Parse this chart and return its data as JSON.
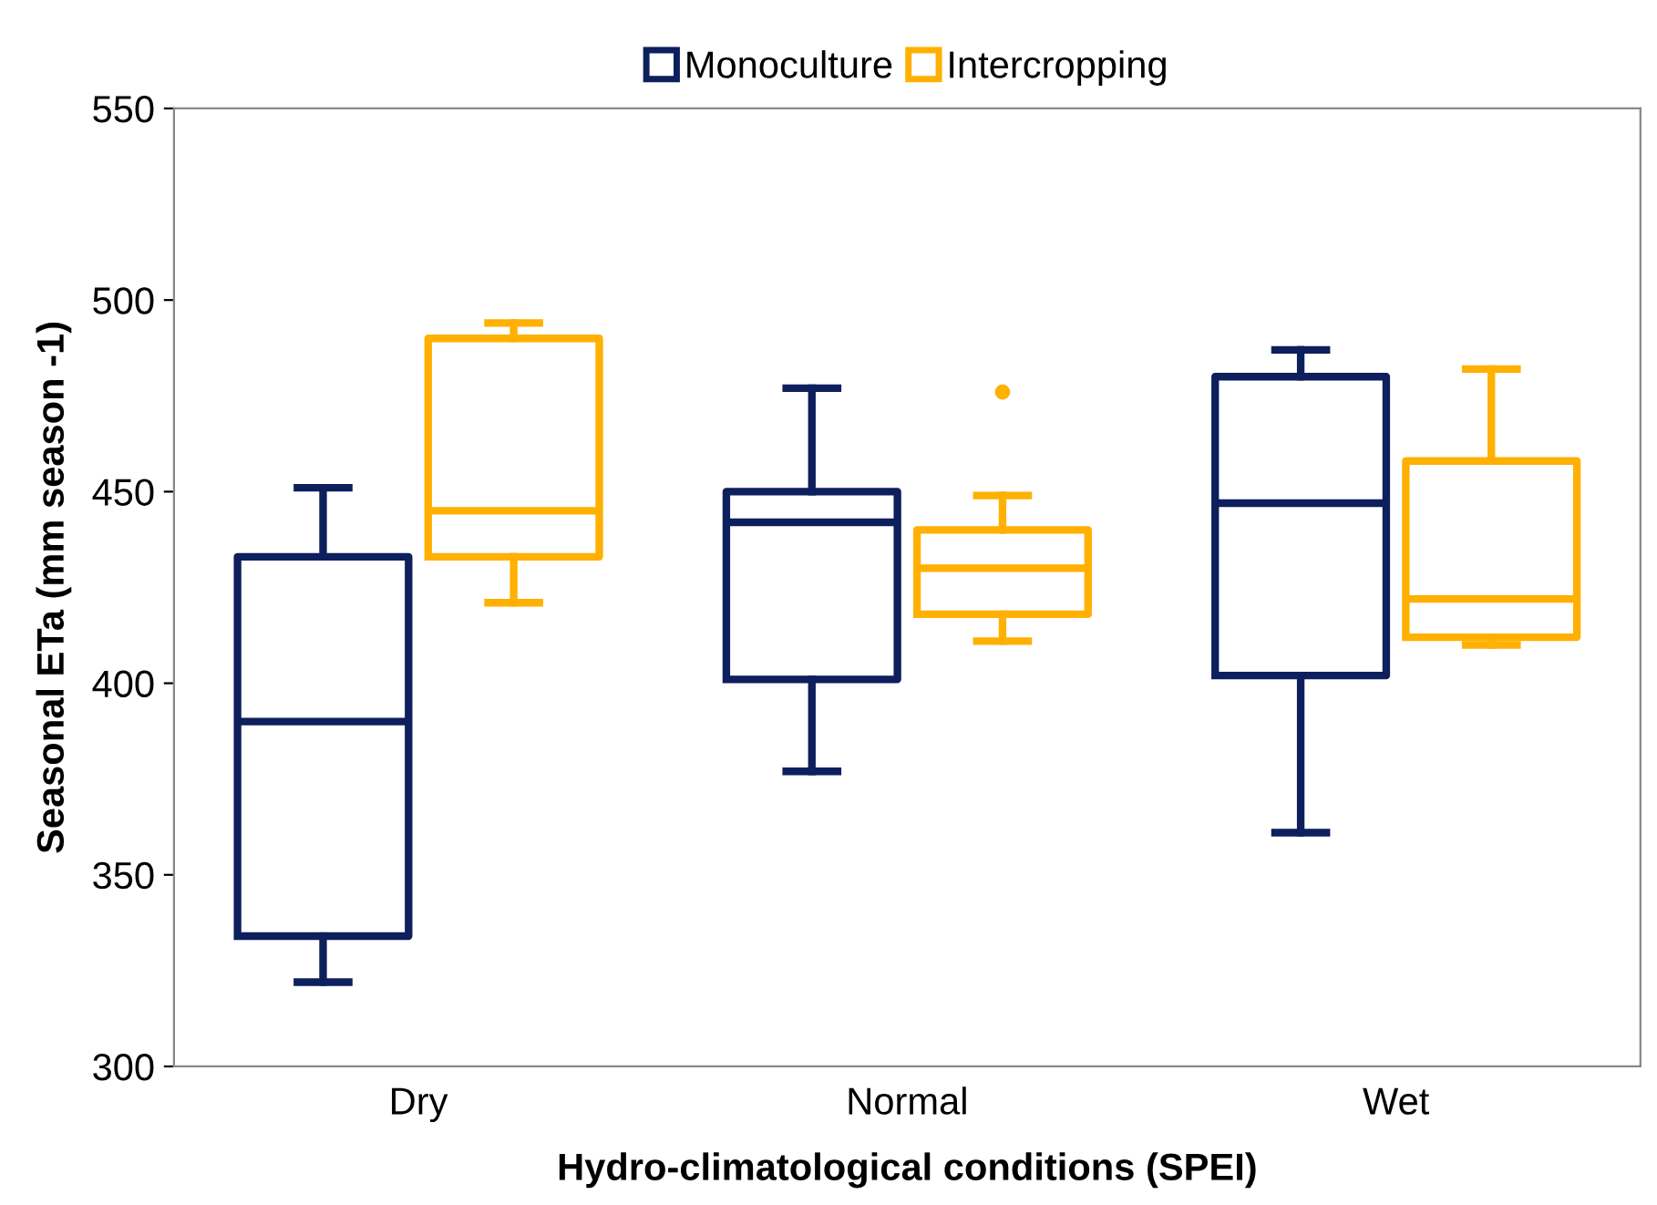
{
  "chart_data": {
    "type": "box",
    "xlabel": "Hydro-climatological conditions (SPEI)",
    "ylabel": "Seasonal ETa (mm season -1)",
    "categories": [
      "Dry",
      "Normal",
      "Wet"
    ],
    "ylim": [
      300,
      550
    ],
    "yticks": [
      300,
      350,
      400,
      450,
      500,
      550
    ],
    "grid": false,
    "legend": "top",
    "series": [
      {
        "name": "Monoculture",
        "color": "#0d1f5c",
        "boxes": [
          {
            "low": 322,
            "q1": 334,
            "median": 390,
            "q3": 433,
            "high": 451
          },
          {
            "low": 377,
            "q1": 401,
            "median": 442,
            "q3": 450,
            "high": 477
          },
          {
            "low": 361,
            "q1": 402,
            "median": 447,
            "q3": 480,
            "high": 487
          }
        ]
      },
      {
        "name": "Intercropping",
        "color": "#ffb000",
        "boxes": [
          {
            "low": 421,
            "q1": 433,
            "median": 445,
            "q3": 490,
            "high": 494
          },
          {
            "low": 411,
            "q1": 418,
            "median": 430,
            "q3": 440,
            "high": 449,
            "outliers": [
              476
            ]
          },
          {
            "low": 410,
            "q1": 412,
            "median": 422,
            "q3": 458,
            "high": 482
          }
        ]
      }
    ]
  }
}
